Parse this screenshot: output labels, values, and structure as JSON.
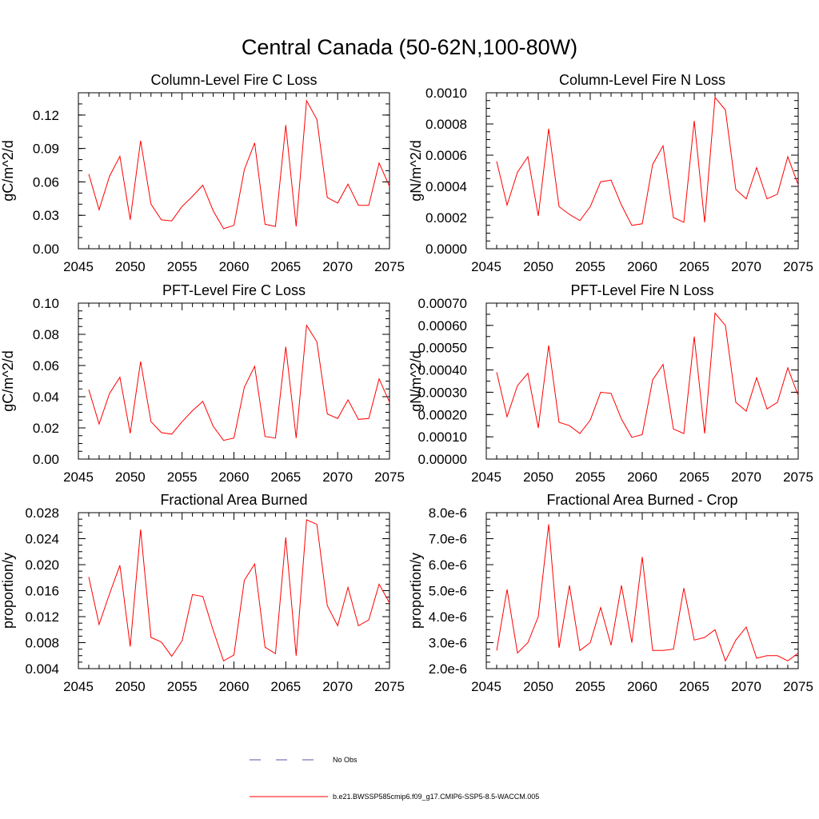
{
  "page": {
    "title": "Central Canada (50-62N,100-80W)"
  },
  "legend": {
    "items": [
      {
        "label": "No Obs",
        "color": "#5555aa",
        "dash": "dashed"
      },
      {
        "label": "b.e21.BWSSP585cmip6.f09_g17.CMIP6-SSP5-8.5-WACCM.005",
        "color": "#ff0000",
        "dash": "solid"
      }
    ]
  },
  "chart_data": [
    {
      "id": "col-c",
      "type": "line",
      "title": "Column-Level Fire C Loss",
      "ylabel": "gC/m^2/d",
      "xlim": [
        2045,
        2075
      ],
      "ylim": [
        0,
        0.14
      ],
      "xticks": [
        2045,
        2050,
        2055,
        2060,
        2065,
        2070,
        2075
      ],
      "yticks": [
        0,
        0.03,
        0.06,
        0.09,
        0.12
      ],
      "ytick_labels": [
        "0.00",
        "0.03",
        "0.06",
        "0.09",
        "0.12"
      ],
      "y_minor": 0.01,
      "x": [
        2046,
        2047,
        2048,
        2049,
        2050,
        2051,
        2052,
        2053,
        2054,
        2055,
        2056,
        2057,
        2058,
        2059,
        2060,
        2061,
        2062,
        2063,
        2064,
        2065,
        2066,
        2067,
        2068,
        2069,
        2070,
        2071,
        2072,
        2073,
        2074,
        2075
      ],
      "series": [
        {
          "color": "#ff0000",
          "values": [
            0.067,
            0.035,
            0.065,
            0.083,
            0.026,
            0.097,
            0.04,
            0.026,
            0.025,
            0.038,
            0.047,
            0.057,
            0.034,
            0.018,
            0.021,
            0.071,
            0.095,
            0.022,
            0.02,
            0.111,
            0.02,
            0.133,
            0.116,
            0.046,
            0.041,
            0.058,
            0.039,
            0.039,
            0.077,
            0.056
          ]
        }
      ]
    },
    {
      "id": "col-n",
      "type": "line",
      "title": "Column-Level Fire N Loss",
      "ylabel": "gN/m^2/d",
      "xlim": [
        2045,
        2075
      ],
      "ylim": [
        0,
        0.001
      ],
      "xticks": [
        2045,
        2050,
        2055,
        2060,
        2065,
        2070,
        2075
      ],
      "yticks": [
        0,
        0.0002,
        0.0004,
        0.0006,
        0.0008,
        0.001
      ],
      "ytick_labels": [
        "0.0000",
        "0.0002",
        "0.0004",
        "0.0006",
        "0.0008",
        "0.0010"
      ],
      "y_minor": 5e-05,
      "x": [
        2046,
        2047,
        2048,
        2049,
        2050,
        2051,
        2052,
        2053,
        2054,
        2055,
        2056,
        2057,
        2058,
        2059,
        2060,
        2061,
        2062,
        2063,
        2064,
        2065,
        2066,
        2067,
        2068,
        2069,
        2070,
        2071,
        2072,
        2073,
        2074,
        2075
      ],
      "series": [
        {
          "color": "#ff0000",
          "values": [
            0.00056,
            0.00028,
            0.00049,
            0.00059,
            0.00021,
            0.00077,
            0.00027,
            0.00022,
            0.00018,
            0.00027,
            0.00043,
            0.00044,
            0.00028,
            0.00015,
            0.00016,
            0.00054,
            0.00066,
            0.0002,
            0.00017,
            0.00082,
            0.00017,
            0.00097,
            0.00089,
            0.00038,
            0.00032,
            0.00052,
            0.00032,
            0.00035,
            0.00059,
            0.00041
          ]
        }
      ]
    },
    {
      "id": "pft-c",
      "type": "line",
      "title": "PFT-Level Fire C Loss",
      "ylabel": "gC/m^2/d",
      "xlim": [
        2045,
        2075
      ],
      "ylim": [
        0,
        0.1
      ],
      "xticks": [
        2045,
        2050,
        2055,
        2060,
        2065,
        2070,
        2075
      ],
      "yticks": [
        0,
        0.02,
        0.04,
        0.06,
        0.08,
        0.1
      ],
      "ytick_labels": [
        "0.00",
        "0.02",
        "0.04",
        "0.06",
        "0.08",
        "0.10"
      ],
      "y_minor": 0.005,
      "x": [
        2046,
        2047,
        2048,
        2049,
        2050,
        2051,
        2052,
        2053,
        2054,
        2055,
        2056,
        2057,
        2058,
        2059,
        2060,
        2061,
        2062,
        2063,
        2064,
        2065,
        2066,
        2067,
        2068,
        2069,
        2070,
        2071,
        2072,
        2073,
        2074,
        2075
      ],
      "series": [
        {
          "color": "#ff0000",
          "values": [
            0.0445,
            0.0225,
            0.042,
            0.0525,
            0.0165,
            0.0625,
            0.024,
            0.017,
            0.016,
            0.024,
            0.031,
            0.037,
            0.021,
            0.012,
            0.0135,
            0.046,
            0.0595,
            0.0145,
            0.0135,
            0.072,
            0.0135,
            0.0858,
            0.0752,
            0.029,
            0.026,
            0.038,
            0.0255,
            0.026,
            0.0515,
            0.0365
          ]
        }
      ]
    },
    {
      "id": "pft-n",
      "type": "line",
      "title": "PFT-Level Fire N Loss",
      "ylabel": "gN/m^2/d",
      "xlim": [
        2045,
        2075
      ],
      "ylim": [
        0,
        0.0007
      ],
      "xticks": [
        2045,
        2050,
        2055,
        2060,
        2065,
        2070,
        2075
      ],
      "yticks": [
        0,
        0.0001,
        0.0002,
        0.0003,
        0.0004,
        0.0005,
        0.0006,
        0.0007
      ],
      "ytick_labels": [
        "0.00000",
        "0.00010",
        "0.00020",
        "0.00030",
        "0.00040",
        "0.00050",
        "0.00060",
        "0.00070"
      ],
      "y_minor": 5e-05,
      "x": [
        2046,
        2047,
        2048,
        2049,
        2050,
        2051,
        2052,
        2053,
        2054,
        2055,
        2056,
        2057,
        2058,
        2059,
        2060,
        2061,
        2062,
        2063,
        2064,
        2065,
        2066,
        2067,
        2068,
        2069,
        2070,
        2071,
        2072,
        2073,
        2074,
        2075
      ],
      "series": [
        {
          "color": "#ff0000",
          "values": [
            0.00039,
            0.00019,
            0.00033,
            0.000385,
            0.00014,
            0.00051,
            0.000165,
            0.00015,
            0.000115,
            0.000175,
            0.0003,
            0.000295,
            0.00018,
            9.75e-05,
            0.00011,
            0.000355,
            0.000425,
            0.000135,
            0.000115,
            0.00055,
            0.000115,
            0.000655,
            0.0006,
            0.000255,
            0.000215,
            0.000365,
            0.000225,
            0.000255,
            0.00041,
            0.000285
          ]
        }
      ]
    },
    {
      "id": "fab",
      "type": "line",
      "title": "Fractional Area Burned",
      "ylabel": "proportion/y",
      "xlim": [
        2045,
        2075
      ],
      "ylim": [
        0.004,
        0.028
      ],
      "xticks": [
        2045,
        2050,
        2055,
        2060,
        2065,
        2070,
        2075
      ],
      "yticks": [
        0.004,
        0.008,
        0.012,
        0.016,
        0.02,
        0.024,
        0.028
      ],
      "ytick_labels": [
        "0.004",
        "0.008",
        "0.012",
        "0.016",
        "0.020",
        "0.024",
        "0.028"
      ],
      "y_minor": 0.001,
      "x": [
        2046,
        2047,
        2048,
        2049,
        2050,
        2051,
        2052,
        2053,
        2054,
        2055,
        2056,
        2057,
        2058,
        2059,
        2060,
        2061,
        2062,
        2063,
        2064,
        2065,
        2066,
        2067,
        2068,
        2069,
        2070,
        2071,
        2072,
        2073,
        2074,
        2075
      ],
      "series": [
        {
          "color": "#ff0000",
          "values": [
            0.0181,
            0.0108,
            0.0155,
            0.0199,
            0.0074,
            0.0254,
            0.0088,
            0.0081,
            0.0059,
            0.0083,
            0.0154,
            0.0151,
            0.0099,
            0.0052,
            0.0061,
            0.0176,
            0.0201,
            0.0073,
            0.0063,
            0.0242,
            0.006,
            0.0269,
            0.0262,
            0.0137,
            0.0106,
            0.0165,
            0.0106,
            0.0115,
            0.017,
            0.0141
          ]
        }
      ]
    },
    {
      "id": "fab-crop",
      "type": "line",
      "title": "Fractional Area Burned - Crop",
      "ylabel": "proportion/y",
      "xlim": [
        2045,
        2075
      ],
      "ylim": [
        2e-06,
        8e-06
      ],
      "xticks": [
        2045,
        2050,
        2055,
        2060,
        2065,
        2070,
        2075
      ],
      "yticks": [
        2e-06,
        3e-06,
        4e-06,
        5e-06,
        6e-06,
        7e-06,
        8e-06
      ],
      "ytick_labels": [
        "2.0e-6",
        "3.0e-6",
        "4.0e-6",
        "5.0e-6",
        "6.0e-6",
        "7.0e-6",
        "8.0e-6"
      ],
      "y_minor": 2.5e-07,
      "x": [
        2046,
        2047,
        2048,
        2049,
        2050,
        2051,
        2052,
        2053,
        2054,
        2055,
        2056,
        2057,
        2058,
        2059,
        2060,
        2061,
        2062,
        2063,
        2064,
        2065,
        2066,
        2067,
        2068,
        2069,
        2070,
        2071,
        2072,
        2073,
        2074,
        2075
      ],
      "series": [
        {
          "color": "#ff0000",
          "values": [
            2.7e-06,
            5.05e-06,
            2.6e-06,
            3e-06,
            4e-06,
            7.55e-06,
            2.8e-06,
            5.2e-06,
            2.7e-06,
            3e-06,
            4.35e-06,
            2.9e-06,
            5.2e-06,
            3e-06,
            6.3e-06,
            2.7e-06,
            2.7e-06,
            2.75e-06,
            5.1e-06,
            3.1e-06,
            3.2e-06,
            3.5e-06,
            2.3e-06,
            3.1e-06,
            3.6e-06,
            2.4e-06,
            2.5e-06,
            2.5e-06,
            2.3e-06,
            2.6e-06
          ]
        }
      ]
    }
  ]
}
